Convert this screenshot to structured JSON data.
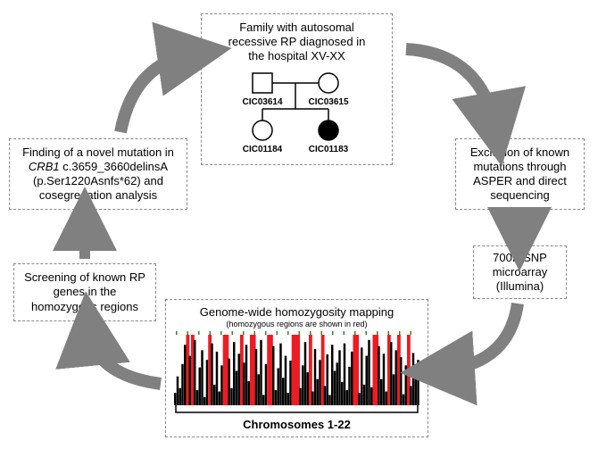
{
  "boxes": {
    "family": {
      "line1": "Family with autosomal",
      "line2": "recessive RP diagnosed in",
      "line3": "the hospital XV-XX"
    },
    "exclusion": {
      "line1": "Exclusion of known",
      "line2": "mutations through",
      "line3": "ASPER and direct",
      "line4": "sequencing"
    },
    "microarray": {
      "line1": "700K SNP",
      "line2": "microarray",
      "line3": "(Illumina)"
    },
    "homozygosity": {
      "title": "Genome-wide homozygosity mapping",
      "subtitle": "(homozygous regions are shown in red)",
      "xlabel": "Chromosomes 1-22"
    },
    "screening": {
      "line1": "Screening of known RP",
      "line2": "genes in the",
      "line3": "homozygous regions"
    },
    "finding": {
      "line1": "Finding of a novel mutation in",
      "line2_prefix": "CRB1",
      "line2_rest": " c.3659_3660delinsA",
      "line3": "(p.Ser1220Asnfs*62) and",
      "line4": "cosegregation analysis"
    }
  },
  "pedigree": {
    "father": "CIC03614",
    "mother": "CIC03615",
    "child1": "CIC01184",
    "child2": "CIC01183"
  },
  "chart": {
    "bar_color": "#000000",
    "homozygous_color": "#ed1c24",
    "background": "#ffffff",
    "bars": [
      18,
      42,
      25,
      60,
      88,
      15,
      72,
      38,
      95,
      22,
      55,
      80,
      12,
      66,
      48,
      90,
      30,
      78,
      20,
      58,
      85,
      40,
      68,
      25,
      92,
      50,
      75,
      18,
      62,
      88,
      35,
      70,
      28,
      82,
      45,
      95,
      15,
      60,
      78,
      32,
      86,
      22,
      54,
      90,
      40,
      72,
      18,
      65,
      85,
      30,
      76,
      25,
      58,
      92,
      48,
      70,
      20,
      82,
      38,
      66,
      95,
      28,
      74,
      15,
      88,
      50,
      62,
      80,
      34,
      90,
      22,
      56,
      78,
      42,
      68,
      18,
      84,
      30,
      72,
      95,
      26,
      60,
      48,
      86,
      38,
      75,
      20,
      64,
      92,
      45,
      80,
      32,
      70,
      16,
      58,
      88,
      28,
      76,
      50,
      66
    ],
    "red_positions": [
      5,
      7,
      14,
      20,
      21,
      27,
      31,
      32,
      38,
      39,
      48,
      49,
      50,
      55,
      60,
      73,
      74,
      81,
      82,
      87,
      91,
      95
    ]
  },
  "colors": {
    "arrow": "#808080",
    "border": "#888888",
    "text": "#000000"
  }
}
